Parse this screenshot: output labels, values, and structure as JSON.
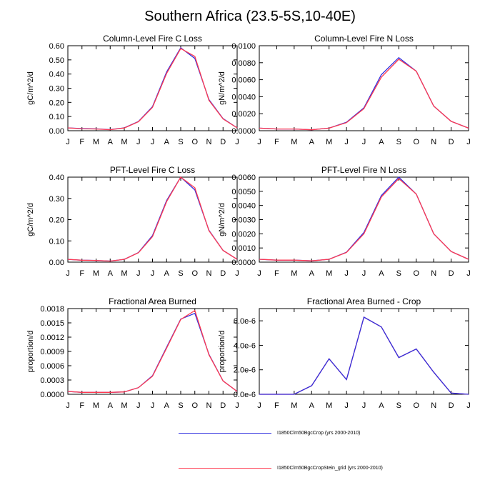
{
  "title": "Southern Africa (23.5-5S,10-40E)",
  "colors": {
    "series_a": "#3030e0",
    "series_b": "#ff3a50"
  },
  "legend": [
    {
      "label": "I1850Clm50BgcCrop (yrs 2000-2010)",
      "color": "#3030e0"
    },
    {
      "label": "I1850Clm50BgcCropStein_grid (yrs 2000-2010)",
      "color": "#ff3a50"
    }
  ],
  "chart_data": [
    {
      "type": "line",
      "title": "Column-Level Fire C Loss",
      "ylabel": "gC/m^2/d",
      "categories": [
        "J",
        "F",
        "M",
        "A",
        "M",
        "J",
        "J",
        "A",
        "S",
        "O",
        "N",
        "D",
        "J"
      ],
      "ylim": [
        0,
        0.6
      ],
      "yticks": [
        "0.00",
        "0.10",
        "0.20",
        "0.30",
        "0.40",
        "0.50",
        "0.60"
      ],
      "series": [
        {
          "color": "#3030e0",
          "values": [
            0.02,
            0.015,
            0.013,
            0.008,
            0.02,
            0.065,
            0.17,
            0.415,
            0.585,
            0.51,
            0.22,
            0.085,
            0.02
          ]
        },
        {
          "color": "#ff3a50",
          "values": [
            0.02,
            0.013,
            0.012,
            0.007,
            0.019,
            0.063,
            0.165,
            0.405,
            0.58,
            0.525,
            0.215,
            0.083,
            0.02
          ]
        }
      ]
    },
    {
      "type": "line",
      "title": "Column-Level Fire N Loss",
      "ylabel": "gN/m^2/d",
      "categories": [
        "J",
        "F",
        "M",
        "A",
        "M",
        "J",
        "J",
        "A",
        "S",
        "O",
        "N",
        "D",
        "J"
      ],
      "ylim": [
        0,
        0.01
      ],
      "yticks": [
        "0.0000",
        "0.0020",
        "0.0040",
        "0.0060",
        "0.0080",
        "0.0100"
      ],
      "series": [
        {
          "color": "#3030e0",
          "values": [
            0.0003,
            0.0002,
            0.0002,
            0.00012,
            0.0003,
            0.001,
            0.0027,
            0.0066,
            0.0086,
            0.007,
            0.0029,
            0.0011,
            0.0003
          ]
        },
        {
          "color": "#ff3a50",
          "values": [
            0.0003,
            0.0002,
            0.0002,
            0.00011,
            0.0003,
            0.00095,
            0.0026,
            0.0063,
            0.0084,
            0.007,
            0.0029,
            0.0011,
            0.0003
          ]
        }
      ]
    },
    {
      "type": "line",
      "title": "PFT-Level Fire C Loss",
      "ylabel": "gC/m^2/d",
      "categories": [
        "J",
        "F",
        "M",
        "A",
        "M",
        "J",
        "J",
        "A",
        "S",
        "O",
        "N",
        "D",
        "J"
      ],
      "ylim": [
        0,
        0.4
      ],
      "yticks": [
        "0.00",
        "0.10",
        "0.20",
        "0.30",
        "0.40"
      ],
      "series": [
        {
          "color": "#3030e0",
          "values": [
            0.013,
            0.009,
            0.008,
            0.005,
            0.013,
            0.045,
            0.125,
            0.29,
            0.4,
            0.34,
            0.15,
            0.055,
            0.013
          ]
        },
        {
          "color": "#ff3a50",
          "values": [
            0.013,
            0.009,
            0.008,
            0.005,
            0.013,
            0.044,
            0.12,
            0.285,
            0.4,
            0.35,
            0.148,
            0.055,
            0.013
          ]
        }
      ]
    },
    {
      "type": "line",
      "title": "PFT-Level Fire N Loss",
      "ylabel": "gN/m^2/d",
      "categories": [
        "J",
        "F",
        "M",
        "A",
        "M",
        "J",
        "J",
        "A",
        "S",
        "O",
        "N",
        "D",
        "J"
      ],
      "ylim": [
        0,
        0.006
      ],
      "yticks": [
        "0.0000",
        "0.0010",
        "0.0020",
        "0.0030",
        "0.0040",
        "0.0050",
        "0.0060"
      ],
      "series": [
        {
          "color": "#3030e0",
          "values": [
            0.0002,
            0.00014,
            0.00014,
            9e-05,
            0.0002,
            0.0007,
            0.0021,
            0.0047,
            0.006,
            0.0048,
            0.002,
            0.00075,
            0.0002
          ]
        },
        {
          "color": "#ff3a50",
          "values": [
            0.0002,
            0.00014,
            0.00014,
            9e-05,
            0.0002,
            0.00068,
            0.002,
            0.0046,
            0.0059,
            0.0048,
            0.002,
            0.00075,
            0.0002
          ]
        }
      ]
    },
    {
      "type": "line",
      "title": "Fractional Area Burned",
      "ylabel": "proportion/d",
      "categories": [
        "J",
        "F",
        "M",
        "A",
        "M",
        "J",
        "J",
        "A",
        "S",
        "O",
        "N",
        "D",
        "J"
      ],
      "ylim": [
        0,
        0.0018
      ],
      "yticks": [
        "0.0000",
        "0.0003",
        "0.0006",
        "0.0009",
        "0.0012",
        "0.0015",
        "0.0018"
      ],
      "series": [
        {
          "color": "#3030e0",
          "values": [
            6e-05,
            4e-05,
            4e-05,
            4e-05,
            5e-05,
            0.00014,
            0.00039,
            0.00099,
            0.00158,
            0.0017,
            0.00084,
            0.00028,
            6e-05
          ]
        },
        {
          "color": "#ff3a50",
          "values": [
            6e-05,
            4e-05,
            4e-05,
            4e-05,
            5e-05,
            0.00014,
            0.00038,
            0.00097,
            0.00157,
            0.00176,
            0.00083,
            0.00028,
            6e-05
          ]
        }
      ]
    },
    {
      "type": "line",
      "title": "Fractional Area Burned - Crop",
      "ylabel": "proportion/d",
      "categories": [
        "J",
        "F",
        "M",
        "A",
        "M",
        "J",
        "J",
        "A",
        "S",
        "O",
        "N",
        "D",
        "J"
      ],
      "ylim": [
        0,
        7e-06
      ],
      "yticks": [
        "0.0e-6",
        "2.0e-6",
        "4.0e-6",
        "6.0e-6"
      ],
      "ytick_values": [
        0,
        2e-06,
        4e-06,
        6e-06
      ],
      "series": [
        {
          "color": "#ff3a50",
          "values": [
            0,
            0,
            0,
            7e-07,
            2.9e-06,
            1.2e-06,
            6.3e-06,
            5.5e-06,
            3e-06,
            3.7e-06,
            1.8e-06,
            1e-07,
            0
          ]
        },
        {
          "color": "#3030e0",
          "values": [
            0,
            0,
            0,
            7e-07,
            2.9e-06,
            1.2e-06,
            6.3e-06,
            5.5e-06,
            3e-06,
            3.7e-06,
            1.8e-06,
            1e-07,
            0
          ]
        }
      ]
    }
  ]
}
